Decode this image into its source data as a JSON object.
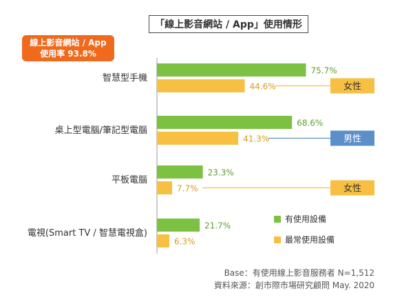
{
  "title": "「線上影音網站 / App」使用情形",
  "badge": {
    "line1": "線上影音網站 / App",
    "line2": "使用率  93.8%"
  },
  "colors": {
    "series1": "#7cc142",
    "series2": "#f7c043",
    "female_tag": "#f7c043",
    "male_tag": "#5b8fc9",
    "badge": "#f06a1e"
  },
  "chart_data": {
    "type": "bar",
    "orientation": "horizontal",
    "categories": [
      "智慧型手機",
      "桌上型電腦/筆記型電腦",
      "平板電腦",
      "電視(Smart TV / 智慧電視盒)"
    ],
    "series": [
      {
        "name": "有使用設備",
        "values": [
          75.7,
          68.6,
          23.3,
          21.7
        ],
        "labels": [
          "75.7%",
          "68.6%",
          "23.3%",
          "21.7%"
        ]
      },
      {
        "name": "最常使用設備",
        "values": [
          44.6,
          41.3,
          7.7,
          6.3
        ],
        "labels": [
          "44.6%",
          "41.3%",
          "7.7%",
          "6.3%"
        ]
      }
    ],
    "annotations": [
      {
        "category_index": 0,
        "series_index": 1,
        "text": "女性",
        "kind": "female"
      },
      {
        "category_index": 1,
        "series_index": 1,
        "text": "男性",
        "kind": "male"
      },
      {
        "category_index": 2,
        "series_index": 1,
        "text": "女性",
        "kind": "female"
      }
    ],
    "legend_placement": "bottom-right",
    "grid": false
  },
  "footer": {
    "base": "Base：有使用線上影音服務者 N=1,512",
    "source": "資料來源：創市際市場研究顧問 May. 2020"
  }
}
